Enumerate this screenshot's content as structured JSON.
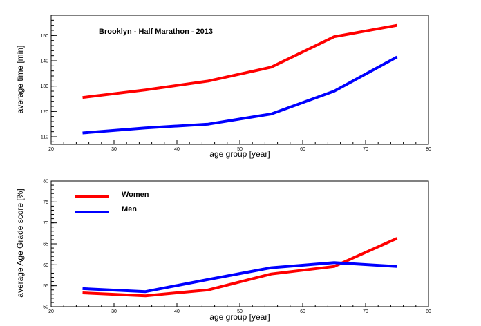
{
  "chart_data": [
    {
      "type": "line",
      "title": "Brooklyn - Half Marathon - 2013",
      "xlabel": "age group [year]",
      "ylabel": "average time [min]",
      "xlim": [
        20,
        80
      ],
      "ylim": [
        107,
        158
      ],
      "xticks": [
        20,
        30,
        40,
        50,
        60,
        70,
        80
      ],
      "yticks": [
        110,
        120,
        130,
        140,
        150
      ],
      "grid": false,
      "series": [
        {
          "color": "#ff0000",
          "x": [
            25,
            35,
            45,
            55,
            65,
            75
          ],
          "y": [
            125.5,
            128.5,
            132,
            137.5,
            149.5,
            154
          ]
        },
        {
          "color": "#0000ff",
          "x": [
            25,
            35,
            45,
            55,
            65,
            75
          ],
          "y": [
            111.5,
            113.5,
            115,
            119,
            128,
            141.5
          ]
        }
      ]
    },
    {
      "type": "line",
      "title": "",
      "xlabel": "age group [year]",
      "ylabel": "average Age Grade score [%]",
      "xlim": [
        20,
        80
      ],
      "ylim": [
        50,
        80
      ],
      "xticks": [
        20,
        30,
        40,
        50,
        60,
        70,
        80
      ],
      "yticks": [
        50,
        55,
        60,
        65,
        70,
        75,
        80
      ],
      "grid": false,
      "legend_position": "top-left",
      "series": [
        {
          "name": "Women",
          "color": "#ff0000",
          "x": [
            25,
            35,
            45,
            55,
            65,
            75
          ],
          "y": [
            53.3,
            52.6,
            54,
            57.8,
            59.6,
            66.3
          ]
        },
        {
          "name": "Men",
          "color": "#0000ff",
          "x": [
            25,
            35,
            45,
            55,
            65,
            75
          ],
          "y": [
            54.3,
            53.6,
            56.5,
            59.3,
            60.5,
            59.6
          ]
        }
      ]
    }
  ]
}
